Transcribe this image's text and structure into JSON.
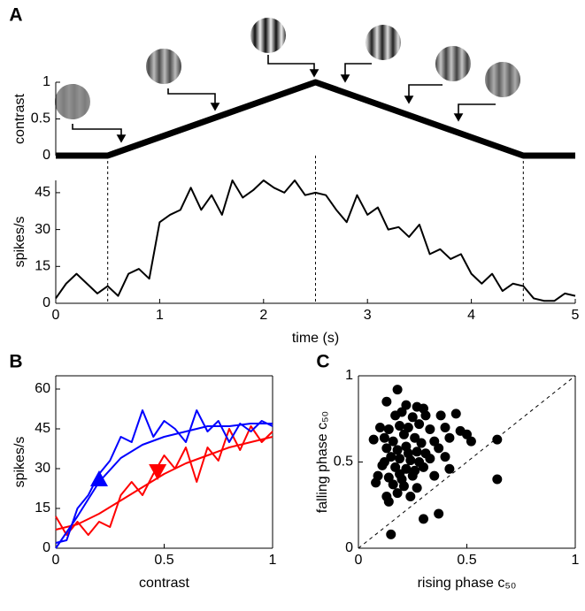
{
  "chart_data": [
    {
      "type": "line",
      "panel": "A",
      "ylabel": "contrast",
      "xlim": [
        0,
        5
      ],
      "ylim": [
        0,
        1
      ],
      "yticks": [
        0,
        0.5,
        1
      ],
      "series": [
        {
          "color": "#000000",
          "x": [
            0,
            0.5,
            2.5,
            4.5,
            5
          ],
          "values": [
            0,
            0,
            1,
            0,
            0
          ]
        }
      ]
    },
    {
      "type": "line",
      "xlabel": "time (s)",
      "ylabel": "spikes/s",
      "xlim": [
        0,
        5
      ],
      "ylim": [
        0,
        50
      ],
      "xticks": [
        0,
        1,
        2,
        3,
        4,
        5
      ],
      "yticks": [
        0,
        15,
        30,
        45
      ],
      "vlines": [
        0.5,
        2.5,
        4.5
      ],
      "series": [
        {
          "color": "#000000",
          "x": [
            0,
            0.1,
            0.2,
            0.3,
            0.4,
            0.5,
            0.6,
            0.7,
            0.8,
            0.9,
            1,
            1.1,
            1.2,
            1.3,
            1.4,
            1.5,
            1.6,
            1.7,
            1.8,
            1.9,
            2,
            2.1,
            2.2,
            2.3,
            2.4,
            2.5,
            2.6,
            2.7,
            2.8,
            2.9,
            3,
            3.1,
            3.2,
            3.3,
            3.4,
            3.5,
            3.6,
            3.7,
            3.8,
            3.9,
            4,
            4.1,
            4.2,
            4.3,
            4.4,
            4.5,
            4.6,
            4.7,
            4.8,
            4.9,
            5
          ],
          "values": [
            2,
            8,
            12,
            8,
            4,
            7,
            3,
            12,
            14,
            10,
            33,
            36,
            38,
            47,
            38,
            44,
            36,
            50,
            43,
            46,
            50,
            47,
            45,
            50,
            44,
            45,
            44,
            38,
            33,
            44,
            36,
            39,
            30,
            31,
            27,
            32,
            20,
            22,
            18,
            20,
            12,
            8,
            12,
            5,
            8,
            7,
            2,
            1,
            1,
            4,
            3
          ]
        }
      ]
    },
    {
      "type": "line",
      "panel": "B",
      "xlabel": "contrast",
      "ylabel": "spikes/s",
      "xlim": [
        0,
        1
      ],
      "ylim": [
        0,
        65
      ],
      "xticks": [
        0,
        0.5,
        1
      ],
      "yticks": [
        0,
        15,
        30,
        45,
        60
      ],
      "series": [
        {
          "color": "#ff0000",
          "x": [
            0,
            0.05,
            0.1,
            0.15,
            0.2,
            0.25,
            0.3,
            0.35,
            0.4,
            0.45,
            0.5,
            0.55,
            0.6,
            0.65,
            0.7,
            0.75,
            0.8,
            0.85,
            0.9,
            0.95,
            1
          ],
          "values": [
            12,
            5,
            10,
            5,
            10,
            8,
            20,
            25,
            20,
            28,
            35,
            30,
            38,
            25,
            38,
            33,
            45,
            37,
            46,
            40,
            44
          ]
        },
        {
          "color": "#0000ff",
          "x": [
            0,
            0.05,
            0.1,
            0.15,
            0.2,
            0.25,
            0.3,
            0.35,
            0.4,
            0.45,
            0.5,
            0.55,
            0.6,
            0.65,
            0.7,
            0.75,
            0.8,
            0.85,
            0.9,
            0.95,
            1
          ],
          "values": [
            2,
            3,
            15,
            20,
            28,
            33,
            42,
            40,
            52,
            42,
            48,
            45,
            40,
            52,
            44,
            48,
            40,
            47,
            44,
            48,
            46
          ]
        },
        {
          "color": "#ff0000",
          "x": [
            0,
            0.1,
            0.2,
            0.3,
            0.4,
            0.5,
            0.6,
            0.7,
            0.8,
            0.9,
            1
          ],
          "values": [
            7,
            9,
            13,
            18,
            23,
            28,
            32,
            35,
            38,
            40,
            42
          ]
        },
        {
          "color": "#0000ff",
          "x": [
            0,
            0.1,
            0.2,
            0.3,
            0.4,
            0.5,
            0.6,
            0.7,
            0.8,
            0.9,
            1
          ],
          "values": [
            0,
            12,
            25,
            34,
            39,
            42,
            44,
            46,
            46,
            47,
            47
          ]
        }
      ],
      "markers": [
        {
          "x": 0.2,
          "y": 26,
          "color": "#0000ff",
          "direction": "up"
        },
        {
          "x": 0.47,
          "y": 29,
          "color": "#ff0000",
          "direction": "down"
        }
      ]
    },
    {
      "type": "scatter",
      "panel": "C",
      "xlabel": "rising phase c₅₀",
      "ylabel": "falling phase c₅₀",
      "xlim": [
        0,
        1
      ],
      "ylim": [
        0,
        1
      ],
      "xticks": [
        0,
        0.5,
        1
      ],
      "yticks": [
        0,
        0.5,
        1
      ],
      "diagonal": true,
      "series": [
        {
          "color": "#000000",
          "x": [
            0.18,
            0.13,
            0.22,
            0.27,
            0.3,
            0.2,
            0.17,
            0.25,
            0.31,
            0.38,
            0.45,
            0.1,
            0.14,
            0.19,
            0.23,
            0.28,
            0.33,
            0.4,
            0.47,
            0.5,
            0.52,
            0.07,
            0.12,
            0.16,
            0.21,
            0.26,
            0.29,
            0.35,
            0.42,
            0.64,
            0.13,
            0.18,
            0.22,
            0.27,
            0.31,
            0.37,
            0.15,
            0.19,
            0.24,
            0.28,
            0.33,
            0.4,
            0.11,
            0.17,
            0.22,
            0.26,
            0.3,
            0.42,
            0.09,
            0.14,
            0.2,
            0.25,
            0.64,
            0.08,
            0.16,
            0.21,
            0.27,
            0.13,
            0.18,
            0.24,
            0.14,
            0.37,
            0.3,
            0.15,
            0.19,
            0.23,
            0.12,
            0.35
          ],
          "values": [
            0.92,
            0.85,
            0.83,
            0.82,
            0.81,
            0.79,
            0.77,
            0.76,
            0.77,
            0.77,
            0.78,
            0.7,
            0.69,
            0.71,
            0.7,
            0.72,
            0.69,
            0.7,
            0.68,
            0.66,
            0.62,
            0.63,
            0.64,
            0.62,
            0.66,
            0.64,
            0.61,
            0.62,
            0.64,
            0.63,
            0.58,
            0.57,
            0.59,
            0.56,
            0.55,
            0.58,
            0.53,
            0.52,
            0.51,
            0.5,
            0.52,
            0.53,
            0.48,
            0.47,
            0.46,
            0.45,
            0.47,
            0.46,
            0.42,
            0.41,
            0.4,
            0.42,
            0.4,
            0.38,
            0.37,
            0.36,
            0.35,
            0.3,
            0.32,
            0.3,
            0.27,
            0.2,
            0.17,
            0.08,
            0.43,
            0.55,
            0.5,
            0.42
          ]
        }
      ]
    }
  ]
}
